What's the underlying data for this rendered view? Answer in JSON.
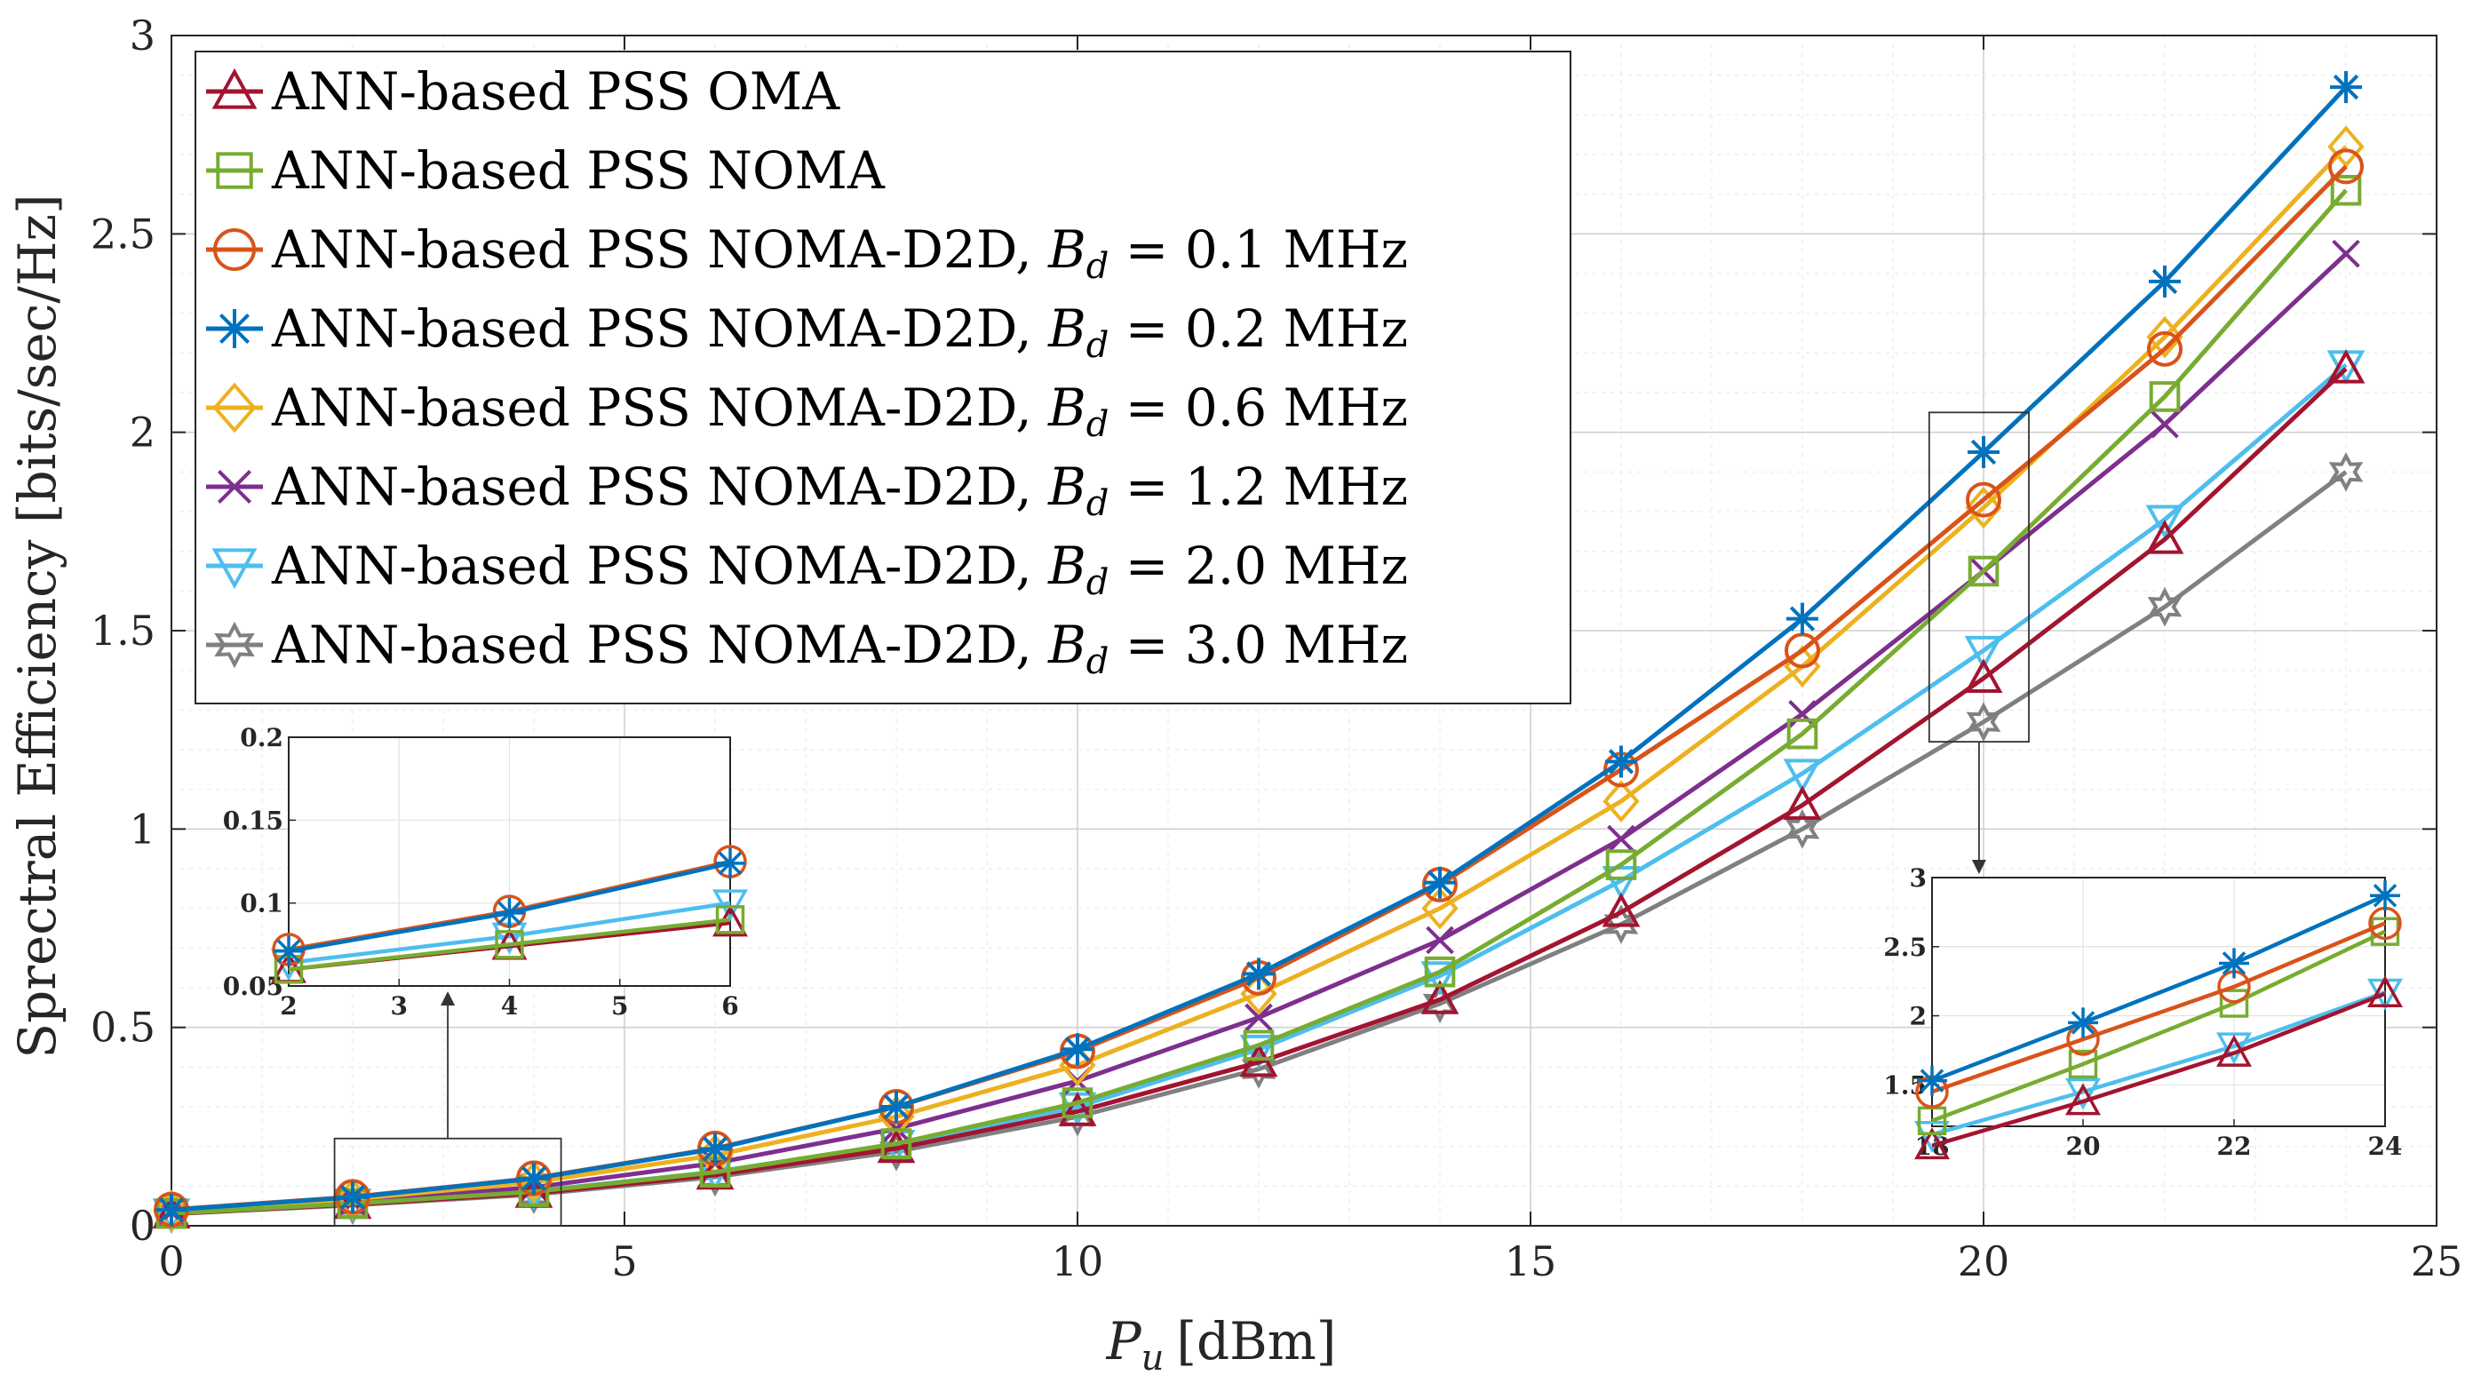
{
  "chart_data": {
    "type": "line",
    "xlabel": "P_u [dBm]",
    "xlabel_var": "P",
    "xlabel_sub": "u",
    "xlabel_unit": "[dBm]",
    "ylabel": "Sprectral Efficiency [bits/sec/Hz]",
    "xlim": [
      0,
      25
    ],
    "ylim": [
      0,
      3
    ],
    "xticks": [
      0,
      5,
      10,
      15,
      20,
      25
    ],
    "yticks": [
      0,
      0.5,
      1,
      1.5,
      2,
      2.5,
      3
    ],
    "xtick_labels": [
      "0",
      "5",
      "10",
      "15",
      "20",
      "25"
    ],
    "ytick_labels": [
      "0",
      "0.5",
      "1",
      "1.5",
      "2",
      "2.5",
      "3"
    ],
    "grid": true,
    "legend_position": "top-left",
    "x": [
      0,
      2,
      4,
      6,
      8,
      10,
      12,
      14,
      16,
      18,
      20,
      22,
      24
    ],
    "series": [
      {
        "name": "ANN-based PSS OMA",
        "prefix": "ANN-based PSS OMA",
        "bd": "",
        "color": "#A2142F",
        "marker": "triangle",
        "values": [
          0.03,
          0.054,
          0.082,
          0.128,
          0.195,
          0.288,
          0.412,
          0.57,
          0.79,
          1.06,
          1.38,
          1.73,
          2.16
        ]
      },
      {
        "name": "ANN-based PSS NOMA",
        "prefix": "ANN-based PSS NOMA",
        "bd": "",
        "color": "#77AC30",
        "marker": "square",
        "values": [
          0.031,
          0.056,
          0.086,
          0.135,
          0.207,
          0.31,
          0.455,
          0.64,
          0.91,
          1.24,
          1.65,
          2.09,
          2.61
        ]
      },
      {
        "name": "ANN-based PSS NOMA-D2D, Bd = 0.1 MHz",
        "prefix": "ANN-based PSS NOMA-D2D, ",
        "bd": "0.1",
        "color": "#D95319",
        "marker": "circle",
        "values": [
          0.041,
          0.073,
          0.12,
          0.195,
          0.3,
          0.44,
          0.625,
          0.86,
          1.15,
          1.45,
          1.83,
          2.21,
          2.67
        ]
      },
      {
        "name": "ANN-based PSS NOMA-D2D, Bd = 0.2 MHz",
        "prefix": "ANN-based PSS NOMA-D2D, ",
        "bd": "0.2",
        "color": "#0072BD",
        "marker": "asterisk",
        "values": [
          0.04,
          0.072,
          0.119,
          0.194,
          0.3,
          0.445,
          0.635,
          0.865,
          1.17,
          1.53,
          1.95,
          2.38,
          2.87
        ]
      },
      {
        "name": "ANN-based PSS NOMA-D2D, Bd = 0.6 MHz",
        "prefix": "ANN-based PSS NOMA-D2D, ",
        "bd": "0.6",
        "color": "#EDB120",
        "marker": "diamond",
        "values": [
          0.038,
          0.067,
          0.11,
          0.178,
          0.275,
          0.405,
          0.585,
          0.8,
          1.07,
          1.41,
          1.81,
          2.24,
          2.72
        ]
      },
      {
        "name": "ANN-based PSS NOMA-D2D, Bd = 1.2 MHz",
        "prefix": "ANN-based PSS NOMA-D2D, ",
        "bd": "1.2",
        "color": "#7E2F8E",
        "marker": "x",
        "values": [
          0.035,
          0.06,
          0.097,
          0.158,
          0.245,
          0.365,
          0.525,
          0.72,
          0.975,
          1.29,
          1.65,
          2.02,
          2.45
        ]
      },
      {
        "name": "ANN-based PSS NOMA-D2D, Bd = 2.0 MHz",
        "prefix": "ANN-based PSS NOMA-D2D, ",
        "bd": "2.0",
        "color": "#4DBEEE",
        "marker": "triangle-down",
        "values": [
          0.032,
          0.057,
          0.087,
          0.136,
          0.205,
          0.3,
          0.445,
          0.63,
          0.87,
          1.14,
          1.45,
          1.78,
          2.17
        ]
      },
      {
        "name": "ANN-based PSS NOMA-D2D, Bd = 3.0 MHz",
        "prefix": "ANN-based PSS NOMA-D2D, ",
        "bd": "3.0",
        "color": "#808080",
        "marker": "hexagram",
        "values": [
          0.03,
          0.052,
          0.079,
          0.123,
          0.187,
          0.275,
          0.395,
          0.56,
          0.76,
          1.0,
          1.27,
          1.56,
          1.9
        ]
      }
    ],
    "insets": [
      {
        "id": "inset-left",
        "xlim": [
          2,
          6
        ],
        "ylim": [
          0.05,
          0.2
        ],
        "xticks": [
          2,
          3,
          4,
          5,
          6
        ],
        "xtick_labels": [
          "2",
          "3",
          "4",
          "5",
          "6"
        ],
        "yticks": [
          0.05,
          0.1,
          0.15,
          0.2
        ],
        "ytick_labels": [
          "0.05",
          "0.1",
          "0.15",
          "0.2"
        ],
        "x_indices": [
          1,
          2,
          3
        ],
        "source_xlim": [
          1.8,
          4.3
        ],
        "source_ylim": [
          0,
          0.22
        ],
        "values_override": {
          "0": [
            0.06,
            0.074,
            0.088
          ],
          "1": [
            0.06,
            0.075,
            0.09
          ],
          "2": [
            0.072,
            0.095,
            0.125
          ],
          "3": [
            0.071,
            0.094,
            0.124
          ],
          "6": [
            0.064,
            0.08,
            0.1
          ]
        },
        "series_shown": [
          0,
          1,
          2,
          3,
          6
        ]
      },
      {
        "id": "inset-right",
        "xlim": [
          18,
          24
        ],
        "ylim": [
          1.2,
          3
        ],
        "xticks": [
          18,
          20,
          22,
          24
        ],
        "xtick_labels": [
          "18",
          "20",
          "22",
          "24"
        ],
        "yticks": [
          1.5,
          2,
          2.5,
          3
        ],
        "ytick_labels": [
          "1.5",
          "2",
          "2.5",
          "3"
        ],
        "x_indices": [
          9,
          10,
          11,
          12
        ],
        "source_xlim": [
          19.4,
          20.5
        ],
        "source_ylim": [
          1.22,
          2.05
        ],
        "series_shown": [
          0,
          1,
          2,
          3,
          6
        ]
      }
    ]
  }
}
